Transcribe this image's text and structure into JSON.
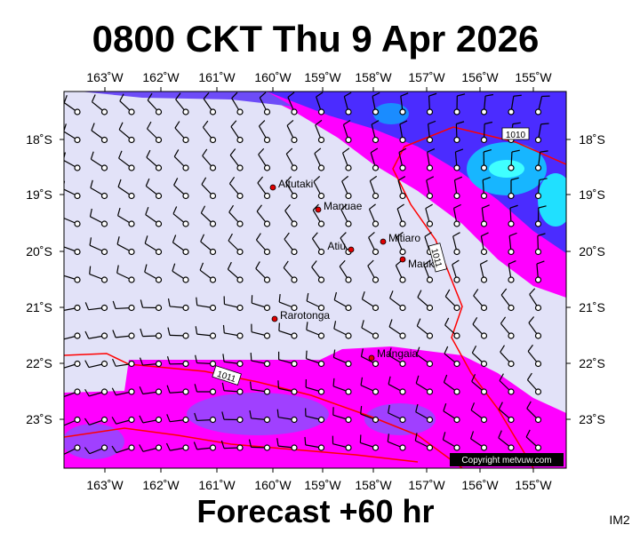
{
  "title": "0800 CKT Thu 9 Apr 2026",
  "footer": "Forecast +60 hr",
  "corner_label": "IM2",
  "copyright": "Copyright metvuw.com",
  "lon_labels": [
    "163˚W",
    "162˚W",
    "161˚W",
    "160˚W",
    "159˚W",
    "158˚W",
    "157˚W",
    "156˚W",
    "155˚W"
  ],
  "lat_labels": [
    "18˚S",
    "19˚S",
    "20˚S",
    "21˚S",
    "22˚S",
    "23˚S"
  ],
  "places": [
    "Aitutaki",
    "Manuae",
    "Atiu",
    "Mitiaro",
    "Mauke",
    "Rarotonga",
    "Mangaia"
  ],
  "isobar_labels": [
    "1010",
    "1011",
    "1011"
  ]
}
